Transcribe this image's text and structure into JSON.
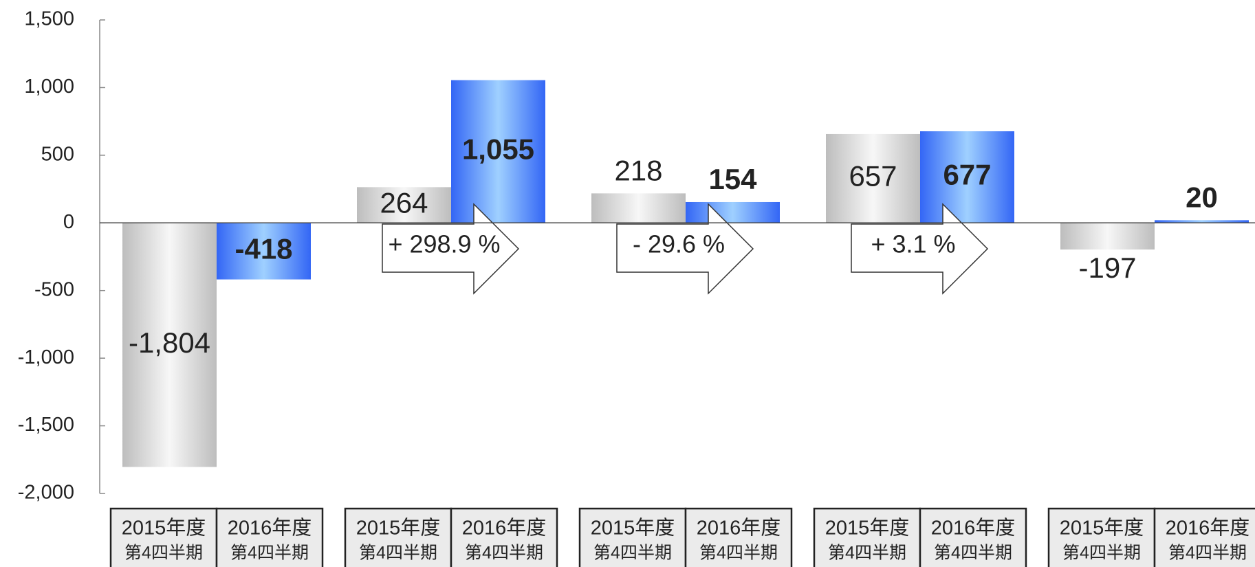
{
  "chart_data": {
    "type": "bar",
    "categories": [
      null,
      null,
      null,
      null,
      null
    ],
    "series": [
      {
        "name": "2015年度",
        "subname": "第4四半期",
        "color": "#bdbdbd",
        "values": [
          -1804,
          264,
          218,
          657,
          -197
        ],
        "value_labels": [
          "-1,804",
          "264",
          "218",
          "657",
          "-197"
        ]
      },
      {
        "name": "2016年度",
        "subname": "第4四半期",
        "color": "#3366f5",
        "values": [
          -418,
          1055,
          154,
          677,
          20
        ],
        "value_labels": [
          "-418",
          "1,055",
          "154",
          "677",
          "20"
        ]
      }
    ],
    "changes": [
      null,
      "+ 298.9 %",
      "- 29.6 %",
      "+ 3.1 %",
      null
    ],
    "ylim": [
      -2000,
      1500
    ],
    "yticks": [
      {
        "value": 1500,
        "label": "1,500"
      },
      {
        "value": 1000,
        "label": "1,000"
      },
      500,
      0,
      -500,
      {
        "value": -1000,
        "label": "-1,000"
      },
      {
        "value": -1500,
        "label": "-1,500"
      },
      {
        "value": -2000,
        "label": "-2,000"
      }
    ]
  }
}
